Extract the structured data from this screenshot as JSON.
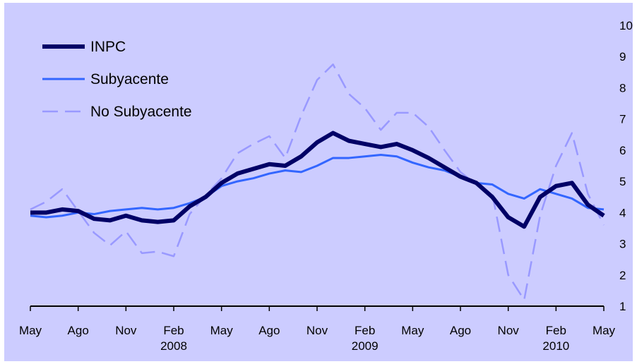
{
  "chart_data": {
    "type": "line",
    "categories": [
      "May",
      null,
      null,
      "Ago",
      null,
      null,
      "Nov",
      null,
      null,
      "Feb 2008",
      null,
      null,
      "May",
      null,
      null,
      "Ago",
      null,
      null,
      "Nov",
      null,
      null,
      "Feb 2009",
      null,
      null,
      "May",
      null,
      null,
      "Ago",
      null,
      null,
      "Nov",
      null,
      null,
      "Feb 2010",
      null,
      null,
      "May"
    ],
    "series": [
      {
        "name": "INPC",
        "color": "#000066",
        "style": "solid",
        "values": [
          4.0,
          4.0,
          4.1,
          4.05,
          3.8,
          3.75,
          3.9,
          3.75,
          3.7,
          3.75,
          4.2,
          4.5,
          4.95,
          5.25,
          5.4,
          5.55,
          5.5,
          5.8,
          6.25,
          6.55,
          6.3,
          6.2,
          6.1,
          6.2,
          6.0,
          5.75,
          5.45,
          5.15,
          4.95,
          4.5,
          3.85,
          3.55,
          4.5,
          4.85,
          4.95,
          4.25,
          3.9
        ]
      },
      {
        "name": "Subyacente",
        "color": "#3366ff",
        "style": "solid",
        "values": [
          3.9,
          3.85,
          3.9,
          4.0,
          3.95,
          4.05,
          4.1,
          4.15,
          4.1,
          4.15,
          4.3,
          4.5,
          4.85,
          5.0,
          5.1,
          5.25,
          5.35,
          5.3,
          5.5,
          5.75,
          5.75,
          5.8,
          5.85,
          5.8,
          5.6,
          5.45,
          5.35,
          5.15,
          4.95,
          4.9,
          4.6,
          4.45,
          4.75,
          4.6,
          4.45,
          4.15,
          4.1
        ]
      },
      {
        "name": "No Subyacente",
        "color": "#9999ff",
        "style": "dashed",
        "values": [
          4.1,
          4.35,
          4.75,
          4.05,
          3.35,
          2.95,
          3.4,
          2.7,
          2.75,
          2.6,
          3.95,
          4.55,
          5.1,
          5.9,
          6.2,
          6.45,
          5.75,
          7.1,
          8.25,
          8.75,
          7.8,
          7.35,
          6.65,
          7.2,
          7.2,
          6.75,
          6.0,
          5.3,
          4.9,
          4.6,
          2.0,
          1.2,
          3.9,
          5.5,
          6.55,
          4.6,
          3.6
        ]
      }
    ],
    "ylim": [
      1,
      10
    ],
    "yticks": [
      1,
      2,
      3,
      4,
      5,
      6,
      7,
      8,
      9,
      10
    ],
    "y_axis_side": "right",
    "legend": "upper left",
    "background": "#ccccff"
  }
}
